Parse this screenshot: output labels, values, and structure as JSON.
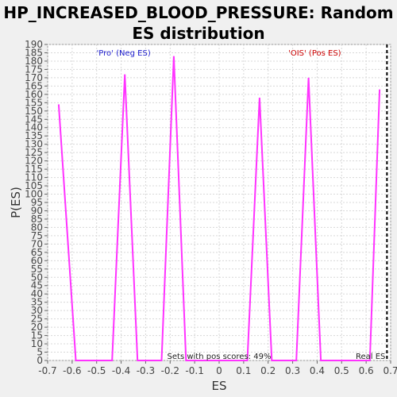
{
  "chart_data": {
    "type": "line",
    "title": "HP_INCREASED_BLOOD_PRESSURE: Random ES distribution",
    "xlabel": "ES",
    "ylabel": "P(ES)",
    "xlim": [
      -0.7,
      0.7
    ],
    "ylim": [
      0,
      190
    ],
    "x_ticks": [
      "-0.7",
      "-0.6",
      "-0.5",
      "-0.4",
      "-0.3",
      "-0.2",
      "-0.1",
      "0",
      "0.1",
      "0.2",
      "0.3",
      "0.4",
      "0.5",
      "0.6",
      "0.7"
    ],
    "y_ticks": [
      "0",
      "5",
      "10",
      "15",
      "20",
      "25",
      "30",
      "35",
      "40",
      "45",
      "50",
      "55",
      "60",
      "65",
      "70",
      "75",
      "80",
      "85",
      "90",
      "95",
      "100",
      "105",
      "110",
      "115",
      "120",
      "125",
      "130",
      "135",
      "140",
      "145",
      "150",
      "155",
      "160",
      "165",
      "170",
      "175",
      "180",
      "185",
      "190"
    ],
    "grid": true,
    "series": [
      {
        "color": "#ff33ff",
        "x": [
          -0.655,
          -0.585,
          -0.535,
          -0.485,
          -0.437,
          -0.385,
          -0.333,
          -0.285,
          -0.235,
          -0.185,
          -0.135,
          -0.085,
          -0.035,
          0.015,
          0.065,
          0.115,
          0.165,
          0.215,
          0.265,
          0.315,
          0.365,
          0.415,
          0.465,
          0.515,
          0.565,
          0.615,
          0.655
        ],
        "y": [
          154,
          0,
          0,
          0,
          0,
          172,
          0,
          0,
          0,
          183,
          0,
          0,
          0,
          0,
          0,
          0,
          158,
          0,
          0,
          0,
          170,
          0,
          0,
          0,
          0,
          0,
          163
        ]
      }
    ],
    "real_es": 0.685,
    "real_es_label": "Real ES",
    "annotations": {
      "neg_label": "'Pro' (Neg ES)",
      "pos_label": "'OIS' (Pos ES)",
      "pos_scores_label": "Sets with pos scores: 49%"
    },
    "colors": {
      "series": "#ff33ff",
      "neg_label": "#1a1acc",
      "pos_label": "#cc0000",
      "real_es_line": "#000000",
      "background": "#ffffff"
    }
  }
}
